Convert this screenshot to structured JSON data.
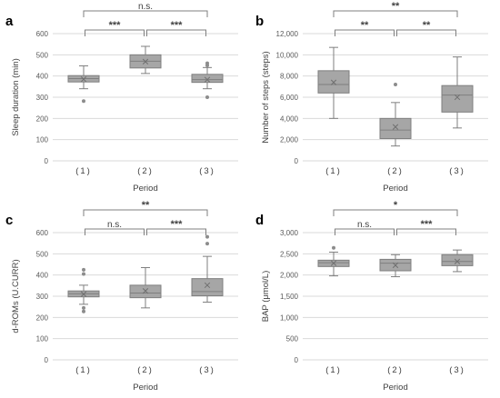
{
  "chart_data": [
    {
      "panel": "a",
      "type": "box",
      "xlabel": "Period",
      "ylabel": "Sleep duration (min)",
      "ylim": [
        0,
        600
      ],
      "yticks": [
        "0",
        "100",
        "200",
        "300",
        "400",
        "500",
        "600"
      ],
      "categories": [
        "(1)",
        "(2)",
        "(3)"
      ],
      "boxes": [
        {
          "min": 340,
          "q1": 372,
          "median": 388,
          "q3": 402,
          "max": 448,
          "mean": 385,
          "outliers": [
            282
          ]
        },
        {
          "min": 412,
          "q1": 438,
          "median": 470,
          "q3": 500,
          "max": 540,
          "mean": 468,
          "outliers": []
        },
        {
          "min": 340,
          "q1": 370,
          "median": 383,
          "q3": 408,
          "max": 440,
          "mean": 383,
          "outliers": [
            460,
            450,
            300
          ]
        }
      ],
      "significance": [
        {
          "from": 0,
          "to": 1,
          "label": "***"
        },
        {
          "from": 1,
          "to": 2,
          "label": "***"
        },
        {
          "from": 0,
          "to": 2,
          "label": "n.s."
        }
      ]
    },
    {
      "panel": "b",
      "type": "box",
      "xlabel": "Period",
      "ylabel": "Number of steps (steps)",
      "ylim": [
        0,
        12000
      ],
      "yticks": [
        "0",
        "2,000",
        "4,000",
        "6,000",
        "8,000",
        "10,000",
        "12,000"
      ],
      "categories": [
        "(1)",
        "(2)",
        "(3)"
      ],
      "boxes": [
        {
          "min": 4000,
          "q1": 6400,
          "median": 7200,
          "q3": 8500,
          "max": 10700,
          "mean": 7400,
          "outliers": []
        },
        {
          "min": 1400,
          "q1": 2100,
          "median": 2900,
          "q3": 4000,
          "max": 5500,
          "mean": 3200,
          "outliers": [
            7200
          ]
        },
        {
          "min": 3100,
          "q1": 4600,
          "median": 6200,
          "q3": 7100,
          "max": 9800,
          "mean": 6000,
          "outliers": []
        }
      ],
      "significance": [
        {
          "from": 0,
          "to": 1,
          "label": "**"
        },
        {
          "from": 1,
          "to": 2,
          "label": "**"
        },
        {
          "from": 0,
          "to": 2,
          "label": "**"
        }
      ]
    },
    {
      "panel": "c",
      "type": "box",
      "xlabel": "Period",
      "ylabel": "d-ROMs (U.CURR)",
      "ylim": [
        0,
        600
      ],
      "yticks": [
        "0",
        "100",
        "200",
        "300",
        "400",
        "500",
        "600"
      ],
      "categories": [
        "(1)",
        "(2)",
        "(3)"
      ],
      "boxes": [
        {
          "min": 262,
          "q1": 297,
          "median": 312,
          "q3": 325,
          "max": 352,
          "mean": 310,
          "outliers": [
            425,
            405,
            245,
            228
          ]
        },
        {
          "min": 245,
          "q1": 293,
          "median": 315,
          "q3": 352,
          "max": 435,
          "mean": 325,
          "outliers": []
        },
        {
          "min": 272,
          "q1": 302,
          "median": 322,
          "q3": 383,
          "max": 488,
          "mean": 352,
          "outliers": [
            580,
            548
          ]
        }
      ],
      "significance": [
        {
          "from": 0,
          "to": 1,
          "label": "n.s."
        },
        {
          "from": 1,
          "to": 2,
          "label": "***"
        },
        {
          "from": 0,
          "to": 2,
          "label": "**"
        }
      ]
    },
    {
      "panel": "d",
      "type": "box",
      "xlabel": "Period",
      "ylabel": "BAP (μmol/L)",
      "ylim": [
        0,
        3000
      ],
      "yticks": [
        "0",
        "500",
        "1,000",
        "1,500",
        "2,000",
        "2,500",
        "3,000"
      ],
      "categories": [
        "(1)",
        "(2)",
        "(3)"
      ],
      "boxes": [
        {
          "min": 1980,
          "q1": 2200,
          "median": 2290,
          "q3": 2350,
          "max": 2540,
          "mean": 2280,
          "outliers": [
            2640
          ]
        },
        {
          "min": 1960,
          "q1": 2100,
          "median": 2280,
          "q3": 2370,
          "max": 2480,
          "mean": 2230,
          "outliers": []
        },
        {
          "min": 2080,
          "q1": 2220,
          "median": 2320,
          "q3": 2480,
          "max": 2590,
          "mean": 2320,
          "outliers": []
        }
      ],
      "significance": [
        {
          "from": 0,
          "to": 1,
          "label": "n.s."
        },
        {
          "from": 1,
          "to": 2,
          "label": "***"
        },
        {
          "from": 0,
          "to": 2,
          "label": "*"
        }
      ]
    }
  ],
  "style": {
    "box_fill": "#a6a6a6",
    "box_stroke": "#7f7f7f",
    "grid": "#d9d9d9",
    "bracket": "#7f7f7f",
    "outlier": "#8c8c8c"
  }
}
